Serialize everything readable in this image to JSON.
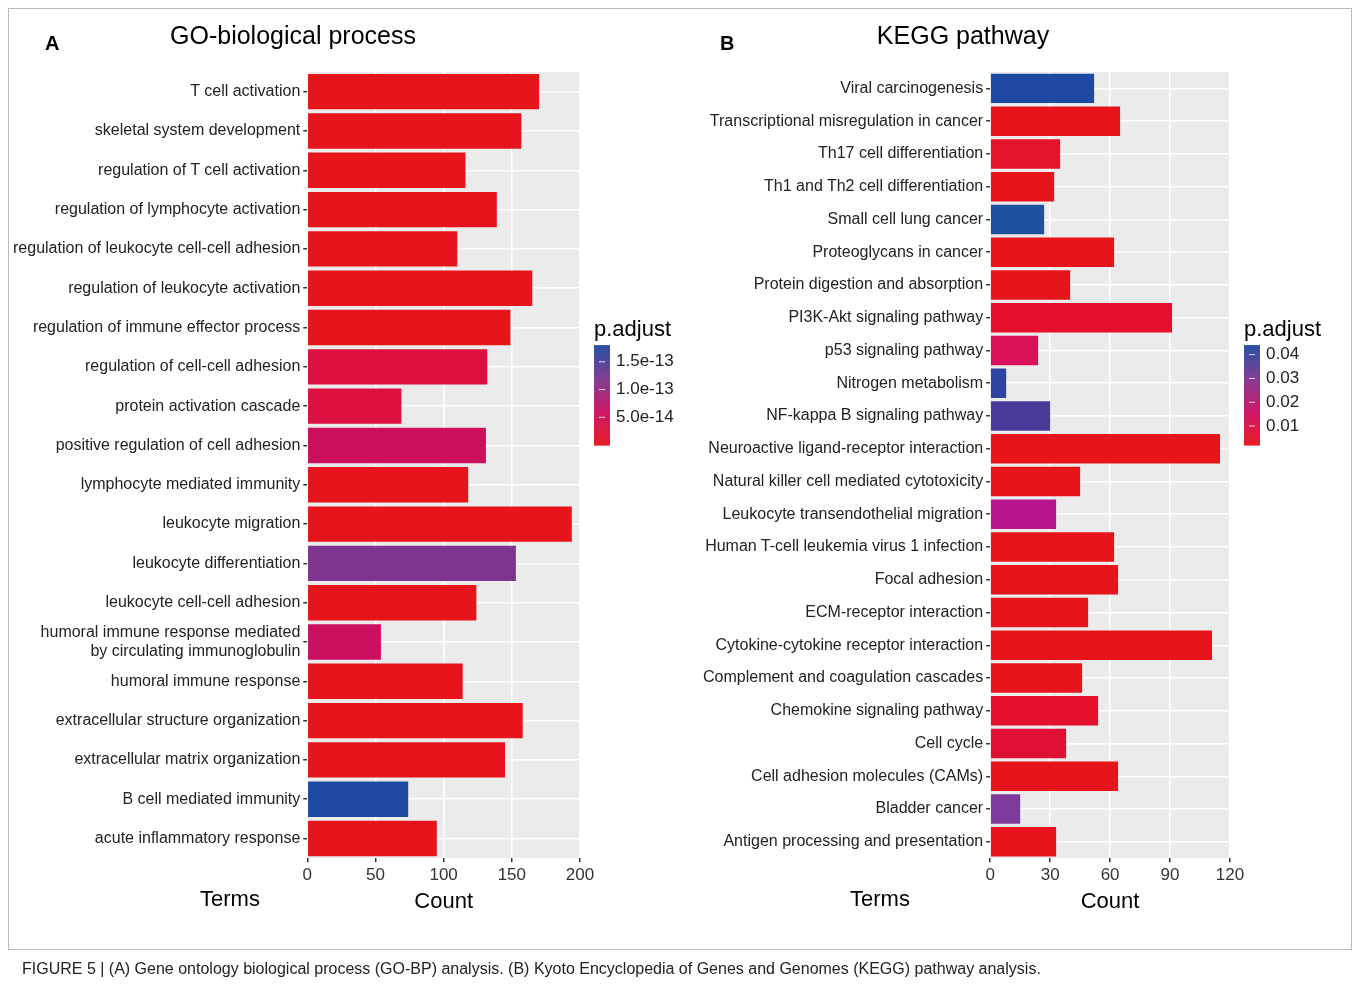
{
  "chart_data": [
    {
      "type": "bar",
      "orientation": "horizontal",
      "title": "GO-biological process",
      "xlabel": "Count",
      "ylabel": "Terms",
      "clabel": "p.adjust",
      "categories": [
        "T cell activation",
        "skeletal system development",
        "regulation of T cell activation",
        "regulation of lymphocyte activation",
        "regulation of leukocyte cell-cell adhesion",
        "regulation of leukocyte activation",
        "regulation of immune effector process",
        "regulation of cell-cell adhesion",
        "protein activation cascade",
        "positive regulation of cell adhesion",
        "lymphocyte mediated immunity",
        "leukocyte migration",
        "leukocyte differentiation",
        "leukocyte cell-cell adhesion",
        "humoral immune response mediated\nby circulating immunoglobulin",
        "humoral immune response",
        "extracellular structure organization",
        "extracellular matrix organization",
        "B cell mediated immunity",
        "acute inflammatory response"
      ],
      "values": [
        170,
        157,
        116,
        139,
        110,
        165,
        149,
        132,
        69,
        131,
        118,
        194,
        153,
        124,
        54,
        114,
        158,
        145,
        74,
        95
      ],
      "colors": [
        "#e8141c",
        "#e8141c",
        "#e8141c",
        "#e8141c",
        "#e8141c",
        "#e8141c",
        "#e8141c",
        "#de1040",
        "#de1040",
        "#cc0f5a",
        "#e8141c",
        "#e8141c",
        "#7e3590",
        "#e8141c",
        "#cc1060",
        "#e8141c",
        "#e8141c",
        "#e8141c",
        "#1d4aa0",
        "#e8141c"
      ],
      "xlim": [
        0,
        200
      ],
      "xticks": [
        0,
        50,
        100,
        150,
        200
      ],
      "clim": [
        0,
        1.8e-13
      ],
      "cticks": [
        {
          "value": 5e-14,
          "label": "5.0e-14"
        },
        {
          "value": 1e-13,
          "label": "1.0e-13"
        },
        {
          "value": 1.5e-13,
          "label": "1.5e-13"
        }
      ],
      "grid": true,
      "annotations": [
        "A",
        "FIGURE 5 | (A) Gene ontology biological process (GO-BP) analysis. (B) Kyoto Encyclopedia of Genes and Genomes (KEGG) pathway analysis."
      ]
    },
    {
      "type": "bar",
      "orientation": "horizontal",
      "title": "KEGG pathway",
      "xlabel": "Count",
      "ylabel": "Terms",
      "clabel": "p.adjust",
      "categories": [
        "Viral carcinogenesis",
        "Transcriptional misregulation in cancer",
        "Th17 cell differentiation",
        "Th1 and Th2 cell differentiation",
        "Small cell lung cancer",
        "Proteoglycans in cancer",
        "Protein digestion and absorption",
        "PI3K-Akt signaling pathway",
        "p53 signaling pathway",
        "Nitrogen metabolism",
        "NF-kappa B signaling pathway",
        "Neuroactive ligand-receptor interaction",
        "Natural killer cell mediated cytotoxicity",
        "Leukocyte transendothelial migration",
        "Human T-cell leukemia virus 1 infection",
        "Focal adhesion",
        "ECM-receptor interaction",
        "Cytokine-cytokine receptor interaction",
        "Complement and coagulation cascades",
        "Chemokine signaling pathway",
        "Cell cycle",
        "Cell adhesion molecules (CAMs)",
        "Bladder cancer",
        "Antigen processing and presentation"
      ],
      "values": [
        52,
        65,
        35,
        32,
        27,
        62,
        40,
        91,
        24,
        8,
        30,
        115,
        45,
        33,
        62,
        64,
        49,
        111,
        46,
        54,
        38,
        64,
        15,
        33
      ],
      "colors": [
        "#1d4aa0",
        "#e8141c",
        "#e4152a",
        "#e8141c",
        "#1f50a0",
        "#e8141c",
        "#e8141c",
        "#e4102c",
        "#d9105a",
        "#2d45a0",
        "#4a3a98",
        "#e8141c",
        "#e8141c",
        "#b81590",
        "#e8141c",
        "#e8141c",
        "#e8141c",
        "#e8141c",
        "#e8141c",
        "#e4102c",
        "#e01035",
        "#e8141c",
        "#7e3a9a",
        "#e8141c"
      ],
      "xlim": [
        0,
        120
      ],
      "xticks": [
        0,
        30,
        60,
        90,
        120
      ],
      "clim": [
        0.002,
        0.044
      ],
      "cticks": [
        0.01,
        0.02,
        0.03,
        0.04
      ],
      "grid": true,
      "annotations": [
        "B"
      ]
    }
  ]
}
